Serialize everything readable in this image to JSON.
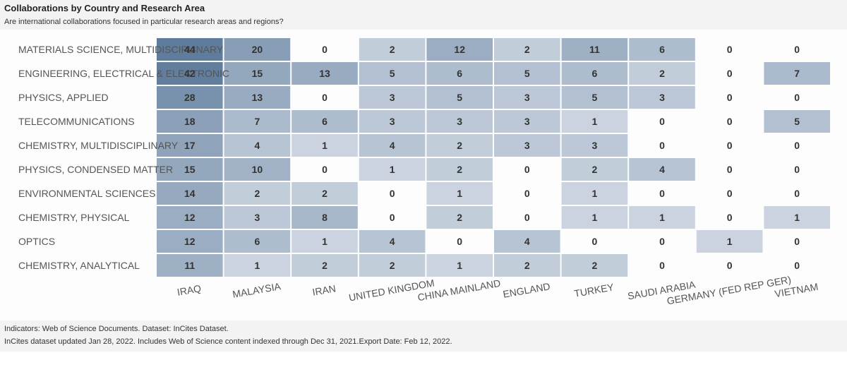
{
  "header": {
    "title": "Collaborations by Country and Research Area",
    "subtitle": "Are international collaborations focused in particular research areas and regions?"
  },
  "footer": {
    "line1": "Indicators:  Web of Science Documents.  Dataset:  InCites Dataset.",
    "line2": "InCites dataset updated Jan 28, 2022. Includes Web of Science content indexed through Dec 31, 2021.Export Date: Feb 12, 2022."
  },
  "chart_data": {
    "type": "heatmap",
    "title": "Collaborations by Country and Research Area",
    "subtitle": "Are international collaborations focused in particular research areas and regions?",
    "columns": [
      "IRAQ",
      "MALAYSIA",
      "IRAN",
      "UNITED KINGDOM",
      "CHINA MAINLAND",
      "ENGLAND",
      "TURKEY",
      "SAUDI ARABIA",
      "GERMANY (FED REP GER)",
      "VIETNAM"
    ],
    "rows": [
      "MATERIALS SCIENCE, MULTIDISCIPLINARY",
      "ENGINEERING, ELECTRICAL & ELECTRONIC",
      "PHYSICS, APPLIED",
      "TELECOMMUNICATIONS",
      "CHEMISTRY, MULTIDISCIPLINARY",
      "PHYSICS, CONDENSED MATTER",
      "ENVIRONMENTAL SCIENCES",
      "CHEMISTRY, PHYSICAL",
      "OPTICS",
      "CHEMISTRY, ANALYTICAL"
    ],
    "values": [
      [
        44,
        20,
        0,
        2,
        12,
        2,
        11,
        6,
        0,
        0
      ],
      [
        42,
        15,
        13,
        5,
        6,
        5,
        6,
        2,
        0,
        7
      ],
      [
        28,
        13,
        0,
        3,
        5,
        3,
        5,
        3,
        0,
        0
      ],
      [
        18,
        7,
        6,
        3,
        3,
        3,
        1,
        0,
        0,
        5
      ],
      [
        17,
        4,
        1,
        4,
        2,
        3,
        3,
        0,
        0,
        0
      ],
      [
        15,
        10,
        0,
        1,
        2,
        0,
        2,
        4,
        0,
        0
      ],
      [
        14,
        2,
        2,
        0,
        1,
        0,
        1,
        0,
        0,
        0
      ],
      [
        12,
        3,
        8,
        0,
        2,
        0,
        1,
        1,
        0,
        1
      ],
      [
        12,
        6,
        1,
        4,
        0,
        4,
        0,
        0,
        1,
        0
      ],
      [
        11,
        1,
        2,
        2,
        1,
        2,
        2,
        0,
        0,
        0
      ]
    ],
    "color_scale": {
      "low": "#dde3eb",
      "high": "#5f7c9d"
    },
    "grid": false,
    "legend": "none"
  }
}
